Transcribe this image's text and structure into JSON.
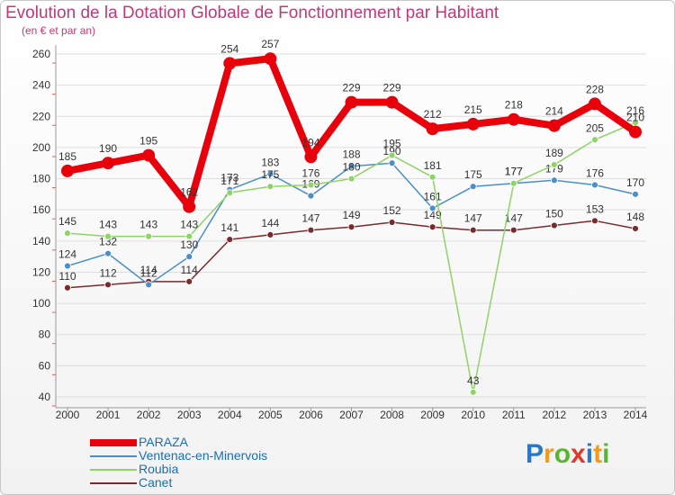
{
  "chart_data": {
    "type": "line",
    "title": "Evolution de la Dotation Globale de Fonctionnement par Habitant",
    "subtitle": "(en € et par an)",
    "xlabel": "",
    "ylabel": "",
    "ylim": [
      40,
      260
    ],
    "yticks": [
      40,
      60,
      80,
      100,
      120,
      140,
      160,
      180,
      200,
      220,
      240,
      260
    ],
    "grid": true,
    "legend_position": "bottom-left",
    "categories": [
      "2000",
      "2001",
      "2002",
      "2003",
      "2004",
      "2005",
      "2006",
      "2007",
      "2008",
      "2009",
      "2010",
      "2011",
      "2012",
      "2013",
      "2014"
    ],
    "series": [
      {
        "name": "PARAZA",
        "color": "#e8000b",
        "values": [
          185,
          190,
          195,
          162,
          254,
          257,
          194,
          229,
          229,
          212,
          215,
          218,
          214,
          228,
          210
        ]
      },
      {
        "name": "Ventenac-en-Minervois",
        "color": "#4b8fc9",
        "values": [
          124,
          132,
          112,
          130,
          173,
          183,
          169,
          188,
          190,
          161,
          175,
          177,
          179,
          176,
          170
        ]
      },
      {
        "name": "Roubia",
        "color": "#8fd466",
        "values": [
          145,
          143,
          143,
          143,
          171,
          175,
          176,
          180,
          195,
          181,
          43,
          177,
          189,
          205,
          216
        ]
      },
      {
        "name": "Canet",
        "color": "#7a2a2a",
        "values": [
          110,
          112,
          114,
          114,
          141,
          144,
          147,
          149,
          152,
          149,
          147,
          147,
          150,
          153,
          148
        ]
      }
    ]
  },
  "brand": {
    "letters": [
      "P",
      "r",
      "o",
      "x",
      "i",
      "t",
      "i"
    ],
    "colors": [
      "#2a77c9",
      "#f09b1a",
      "#58b52f",
      "#e0382b",
      "#2a77c9",
      "#f09b1a",
      "#58b52f"
    ]
  }
}
